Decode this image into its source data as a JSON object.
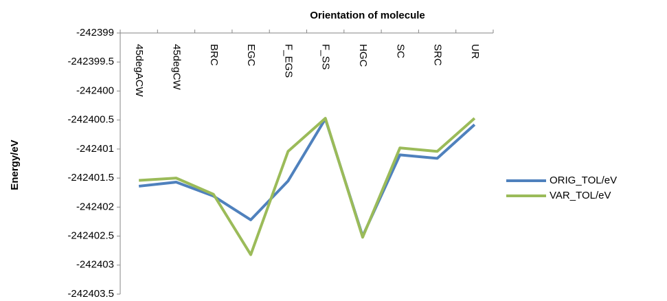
{
  "chart_data": {
    "type": "line",
    "title": "Orientation of molecule",
    "y_label": "Energy/eV",
    "categories": [
      "45degACW",
      "45degCW",
      "BRC",
      "EGC",
      "F_EGS",
      "F_SS",
      "HGC",
      "SC",
      "SRC",
      "UR"
    ],
    "series": [
      {
        "name": "ORIG_TOL/eV",
        "color": "#4f81bd",
        "values": [
          -242401.64,
          -242401.57,
          -242401.81,
          -242402.22,
          -242401.55,
          -242400.48,
          -242402.5,
          -242401.1,
          -242401.16,
          -242400.58
        ]
      },
      {
        "name": "VAR_TOL/eV",
        "color": "#9bbb59",
        "values": [
          -242401.54,
          -242401.5,
          -242401.78,
          -242402.82,
          -242401.04,
          -242400.47,
          -242402.52,
          -242400.98,
          -242401.04,
          -242400.47
        ]
      }
    ],
    "ylim": [
      -242403.5,
      -242399
    ],
    "yticks": [
      -242399,
      -242399.5,
      -242400,
      -242400.5,
      -242401,
      -242401.5,
      -242402,
      -242402.5,
      -242403,
      -242403.5
    ],
    "legend": "right",
    "grid": false
  }
}
